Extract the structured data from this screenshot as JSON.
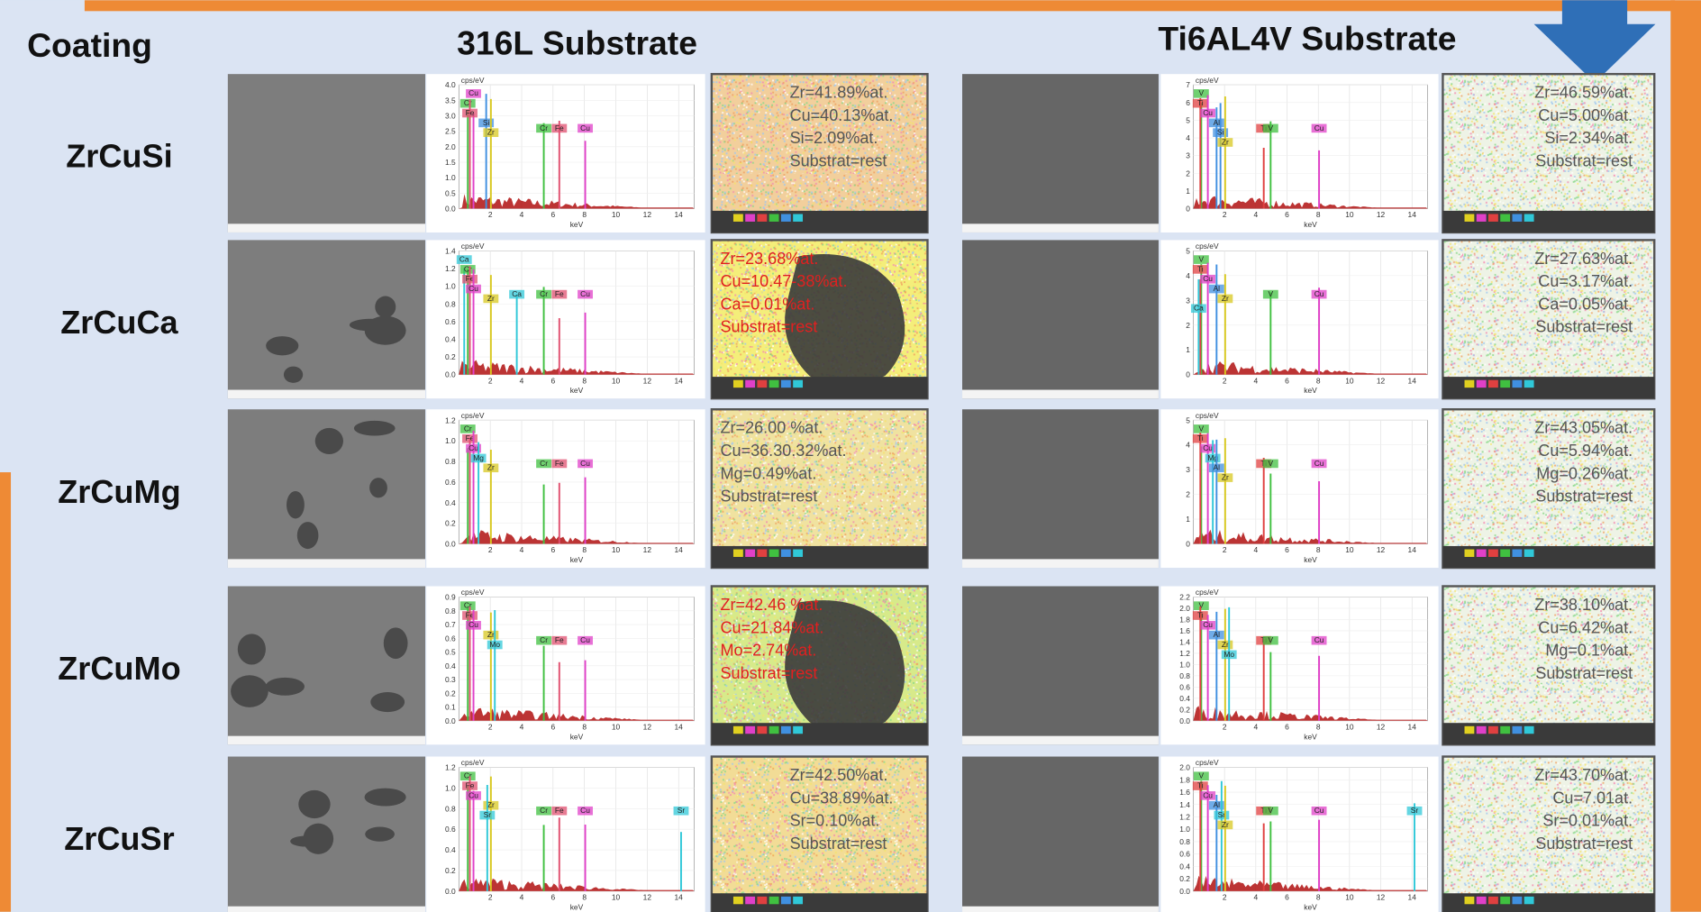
{
  "header": {
    "coating_label": "Coating",
    "substrates": [
      "316L Substrate",
      "Ti6AL4V Substrate"
    ]
  },
  "spectrum_axes": {
    "y_unit": "cps/eV",
    "x_unit": "keV",
    "xlim": [
      0,
      15
    ],
    "xticks": [
      2,
      4,
      6,
      8,
      10,
      12,
      14
    ]
  },
  "rows": [
    {
      "coating": "ZrCuSi",
      "panels": [
        {
          "ytick_labels": [
            "0.0",
            "0.5",
            "1.0",
            "1.5",
            "2.0",
            "2.5",
            "3.0",
            "3.5",
            "4.0"
          ],
          "peaks": [
            "Cu",
            "Cr",
            "Fe",
            "Si",
            "Zr",
            "Cr",
            "Fe",
            "Cu"
          ],
          "composition": [
            "Zr=41.89%at.",
            "Cu=40.13%at.",
            "Si=2.09%at.",
            "Substrat=rest"
          ],
          "text_color": "#555555",
          "map_color": "#f2cf9c"
        },
        {
          "ytick_labels": [
            "0",
            "1",
            "2",
            "3",
            "4",
            "5",
            "6",
            "7"
          ],
          "peaks": [
            "V",
            "Ti",
            "Cu",
            "Al",
            "Si",
            "Zr",
            "Ti",
            "V",
            "Cu"
          ],
          "composition": [
            "Zr=46.59%at.",
            "Cu=5.00%at.",
            "Si=2.34%at.",
            "Substrat=rest"
          ],
          "text_color": "#555555",
          "map_color": "#eef3e6"
        }
      ]
    },
    {
      "coating": "ZrCuCa",
      "panels": [
        {
          "ytick_labels": [
            "0.0",
            "0.2",
            "0.4",
            "0.6",
            "0.8",
            "1.0",
            "1.2",
            "1.4"
          ],
          "peaks": [
            "Ca",
            "Cr",
            "Fe",
            "Cu",
            "Zr",
            "Ca",
            "Cr",
            "Fe",
            "Cu"
          ],
          "composition": [
            "Zr=23.68%at.",
            "Cu=10.47-38%at.",
            "Ca=0.01%at.",
            "Substrat=rest"
          ],
          "text_color": "#e02020",
          "map_color": "#f4ee7a"
        },
        {
          "ytick_labels": [
            "0",
            "1",
            "2",
            "3",
            "4",
            "5"
          ],
          "peaks": [
            "V",
            "Ti",
            "Cu",
            "Al",
            "Zr",
            "Ca",
            "V",
            "Cu"
          ],
          "composition": [
            "Zr=27.63%at.",
            "Cu=3.17%at.",
            "Ca=0.05%at.",
            "Substrat=rest"
          ],
          "text_color": "#555555",
          "map_color": "#eef3e6"
        }
      ]
    },
    {
      "coating": "ZrCuMg",
      "panels": [
        {
          "ytick_labels": [
            "0.0",
            "0.2",
            "0.4",
            "0.6",
            "0.8",
            "1.0",
            "1.2"
          ],
          "peaks": [
            "Cr",
            "Fe",
            "Cu",
            "Mg",
            "Zr",
            "Cr",
            "Fe",
            "Cu"
          ],
          "composition": [
            "Zr=26.00 %at.",
            "Cu=36.30.32%at.",
            "Mg=0.49%at.",
            "Substrat=rest"
          ],
          "text_color": "#555555",
          "map_color": "#f0e2a0"
        },
        {
          "ytick_labels": [
            "0",
            "1",
            "2",
            "3",
            "4",
            "5"
          ],
          "peaks": [
            "V",
            "Ti",
            "Cu",
            "Mg",
            "Al",
            "Zr",
            "Ti",
            "V",
            "Cu"
          ],
          "composition": [
            "Zr=43.05%at.",
            "Cu=5.94%at.",
            "Mg=0.26%at.",
            "Substrat=rest"
          ],
          "text_color": "#555555",
          "map_color": "#eef3e6"
        }
      ]
    },
    {
      "coating": "ZrCuMo",
      "panels": [
        {
          "ytick_labels": [
            "0.0",
            "0.1",
            "0.2",
            "0.3",
            "0.4",
            "0.5",
            "0.6",
            "0.7",
            "0.8",
            "0.9"
          ],
          "peaks": [
            "Cr",
            "Fe",
            "Cu",
            "Zr",
            "Mo",
            "Cr",
            "Fe",
            "Cu"
          ],
          "composition": [
            "Zr=42.46 %at.",
            "Cu=21.84%at.",
            "Mo=2.74%at.",
            "Substrat=rest"
          ],
          "text_color": "#e02020",
          "map_color": "#d7ea8a"
        },
        {
          "ytick_labels": [
            "0.0",
            "0.2",
            "0.4",
            "0.6",
            "0.8",
            "1.0",
            "1.2",
            "1.4",
            "1.6",
            "1.8",
            "2.0",
            "2.2"
          ],
          "peaks": [
            "V",
            "Ti",
            "Cu",
            "Al",
            "Zr",
            "Mo",
            "Ti",
            "V",
            "Cu"
          ],
          "composition": [
            "Zr=38.10%at.",
            "Cu=6.42%at.",
            "Mg=0.1%at.",
            "Substrat=rest"
          ],
          "text_color": "#555555",
          "map_color": "#eef3e6"
        }
      ]
    },
    {
      "coating": "ZrCuSr",
      "panels": [
        {
          "ytick_labels": [
            "0.0",
            "0.2",
            "0.4",
            "0.6",
            "0.8",
            "1.0",
            "1.2"
          ],
          "peaks": [
            "Cr",
            "Fe",
            "Cu",
            "Zr",
            "Sr",
            "Cr",
            "Fe",
            "Cu",
            "Sr"
          ],
          "composition": [
            "Zr=42.50%at.",
            "Cu=38.89%at.",
            "Sr=0.10%at.",
            "Substrat=rest"
          ],
          "text_color": "#555555",
          "map_color": "#f2dc96"
        },
        {
          "ytick_labels": [
            "0.0",
            "0.2",
            "0.4",
            "0.6",
            "0.8",
            "1.0",
            "1.2",
            "1.4",
            "1.6",
            "1.8",
            "2.0"
          ],
          "peaks": [
            "V",
            "Ti",
            "Cu",
            "Al",
            "Sr",
            "Zr",
            "Ti",
            "V",
            "Cu",
            "Sr"
          ],
          "composition": [
            "Zr=43.70%at.",
            "Cu=7.01at.",
            "Sr=0.01%at.",
            "Substrat=rest"
          ],
          "text_color": "#555555",
          "map_color": "#eef3e6"
        }
      ]
    }
  ]
}
